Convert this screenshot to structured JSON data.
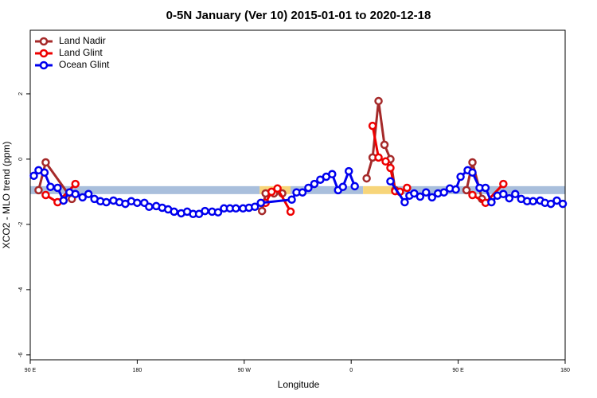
{
  "chart_data": {
    "type": "line",
    "title": "0-5N January (Ver 10)   2015-01-01 to 2020-12-18",
    "x_label": "Longitude",
    "y_label": "XCO2 - MLO trend (ppm)",
    "xlim": [
      90,
      540
    ],
    "ylim": [
      -6.15,
      3.95
    ],
    "xticks": [
      {
        "value": 90,
        "label": "90 E"
      },
      180,
      {
        "value": 270,
        "label": "90 W"
      },
      {
        "value": 360,
        "label": "0"
      },
      {
        "value": 450,
        "label": "90 E"
      },
      {
        "value": 540,
        "label": "180"
      }
    ],
    "yticks": [
      -6,
      -4,
      -2,
      0,
      2
    ],
    "legend": "top-left",
    "band": {
      "y": -0.95,
      "segments": [
        {
          "from": 90,
          "to": 283,
          "color": "#a9bfdc"
        },
        {
          "from": 283,
          "to": 309,
          "color": "#f7d57a"
        },
        {
          "from": 309,
          "to": 370,
          "color": "#a9bfdc"
        },
        {
          "from": 370,
          "to": 397,
          "color": "#f7d57a"
        },
        {
          "from": 397,
          "to": 540,
          "color": "#a9bfdc"
        }
      ]
    },
    "series": [
      {
        "name": "Land Nadir",
        "color": "#a52a2a",
        "x": [
          97,
          103,
          125,
          200,
          285,
          288,
          295,
          302,
          340,
          373,
          378,
          383,
          388,
          393,
          397,
          430,
          457,
          462,
          470
        ],
        "values": [
          -0.95,
          -0.1,
          -1.22,
          null,
          -1.59,
          -1.05,
          -1.05,
          -1.05,
          null,
          -0.59,
          0.05,
          1.78,
          0.44,
          0,
          -0.95,
          null,
          -0.95,
          -0.1,
          -1.22
        ]
      },
      {
        "name": "Land Glint",
        "color": "#ee0000",
        "x": [
          103,
          113,
          128,
          200,
          288,
          293,
          298,
          309,
          340,
          378,
          383,
          389,
          393,
          397,
          401,
          407,
          430,
          462,
          473,
          488
        ],
        "values": [
          -1.1,
          -1.32,
          -0.76,
          null,
          -1.34,
          -1.0,
          -0.9,
          -1.61,
          null,
          1.02,
          0.05,
          -0.07,
          -0.27,
          -0.98,
          -1.0,
          -0.88,
          null,
          -1.1,
          -1.34,
          -0.76
        ]
      },
      {
        "name": "Ocean Glint",
        "color": "#0000ee",
        "x": [
          93,
          97,
          102,
          107,
          113,
          118,
          123,
          128,
          134,
          139,
          144,
          149,
          154,
          160,
          165,
          170,
          175,
          180,
          186,
          190,
          196,
          201,
          206,
          211,
          217,
          222,
          227,
          232,
          237,
          243,
          248,
          253,
          258,
          263,
          269,
          274,
          279,
          284,
          310,
          314,
          319,
          324,
          329,
          334,
          339,
          344,
          349,
          353,
          358,
          363,
          378,
          393,
          405,
          409,
          413,
          418,
          423,
          428,
          433,
          438,
          443,
          448,
          452,
          458,
          462,
          468,
          473,
          478,
          483,
          488,
          493,
          498,
          503,
          508,
          513,
          519,
          523,
          528,
          533,
          538
        ],
        "values": [
          -0.51,
          -0.34,
          -0.41,
          -0.85,
          -0.88,
          -1.27,
          -1.02,
          -1.07,
          -1.17,
          -1.07,
          -1.22,
          -1.29,
          -1.32,
          -1.27,
          -1.32,
          -1.37,
          -1.29,
          -1.34,
          -1.34,
          -1.46,
          -1.44,
          -1.49,
          -1.54,
          -1.61,
          -1.66,
          -1.61,
          -1.68,
          -1.68,
          -1.59,
          -1.61,
          -1.63,
          -1.51,
          -1.51,
          -1.51,
          -1.51,
          -1.49,
          -1.46,
          -1.34,
          -1.24,
          -1.02,
          -1.02,
          -0.88,
          -0.76,
          -0.63,
          -0.54,
          -0.46,
          -0.95,
          -0.85,
          -0.37,
          -0.83,
          null,
          -0.68,
          -1.32,
          -1.12,
          -1.05,
          -1.15,
          -1.02,
          -1.17,
          -1.05,
          -1.02,
          -0.9,
          -0.93,
          -0.54,
          -0.34,
          -0.41,
          -0.88,
          -0.88,
          -1.32,
          -1.12,
          -1.07,
          -1.2,
          -1.07,
          -1.22,
          -1.29,
          -1.29,
          -1.27,
          -1.34,
          -1.37,
          -1.27,
          -1.37
        ]
      }
    ]
  }
}
